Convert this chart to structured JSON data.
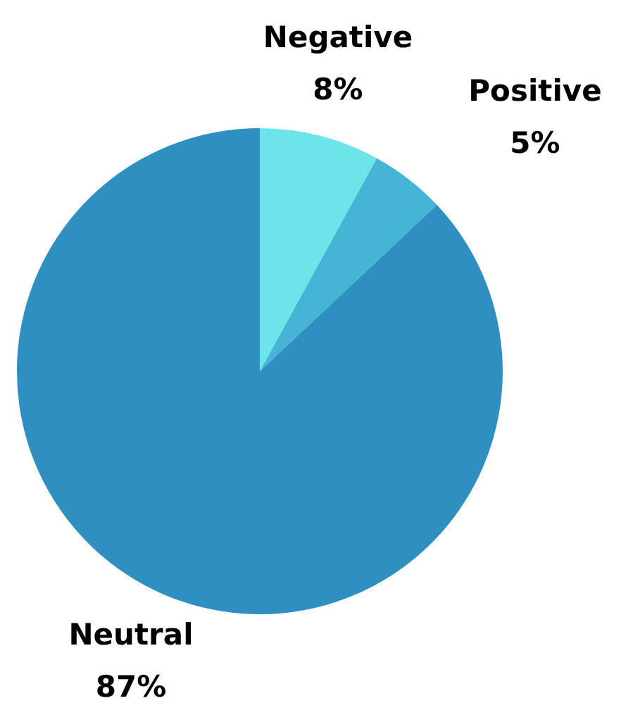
{
  "chart_data": {
    "type": "pie",
    "categories": [
      "Negative",
      "Positive",
      "Neutral"
    ],
    "values": [
      8,
      5,
      87
    ],
    "colors": [
      "#6de4e8",
      "#45b5d6",
      "#2e8fc0"
    ],
    "value_labels": [
      "8%",
      "5%",
      "87%"
    ],
    "legend": false
  }
}
